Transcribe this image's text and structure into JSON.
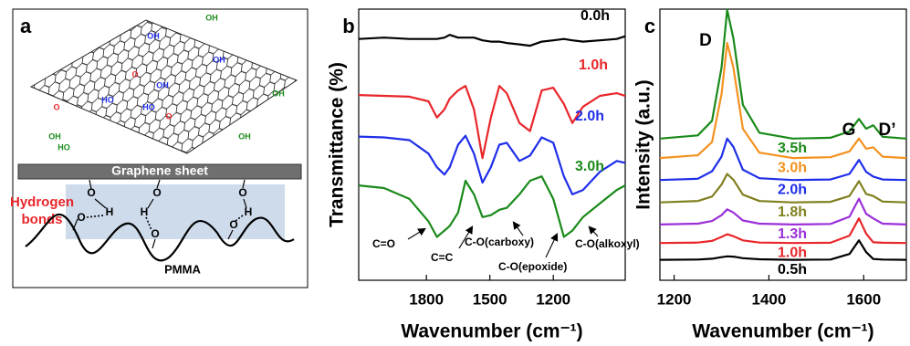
{
  "diagram": {
    "label": "a",
    "sheet_label": "Graphene sheet",
    "hbond_label": [
      "Hydrogen",
      "bonds"
    ],
    "polymer_label": "PMMA",
    "groups": [
      "OH",
      "OH",
      "OH",
      "OH",
      "OH",
      "HO",
      "HO",
      "OH",
      "OH",
      "HO",
      "O",
      "O",
      "O"
    ],
    "bond_atoms": [
      "O",
      "H",
      "O",
      "O",
      "H",
      "O",
      "O",
      "H",
      "O"
    ]
  },
  "chart_data": [
    {
      "type": "line",
      "panel_label": "b",
      "xlabel": "Wavenumber (cm⁻¹)",
      "ylabel": "Transmittance (%)",
      "x": [
        2120,
        2000,
        1880,
        1790,
        1750,
        1715,
        1690,
        1650,
        1615,
        1575,
        1535,
        1495,
        1455,
        1420,
        1360,
        1310,
        1255,
        1200,
        1150,
        1110,
        1060,
        980,
        900,
        860
      ],
      "xlim": [
        2120,
        860
      ],
      "xticks": [
        1800,
        1500,
        1200
      ],
      "ylim": [
        0,
        100
      ],
      "series": [
        {
          "name": "0.0h",
          "color": "#000000",
          "values": [
            89,
            89.5,
            89,
            89,
            89,
            89.5,
            90.5,
            89.5,
            89.5,
            89.5,
            88.5,
            88,
            88,
            87.5,
            87,
            86.5,
            88,
            88.5,
            89,
            88.5,
            88,
            88.5,
            89,
            90
          ]
        },
        {
          "name": "1.0h",
          "color": "#e8262a",
          "values": [
            68.3,
            68,
            67.7,
            66,
            60,
            63,
            67,
            70,
            71.7,
            63,
            45,
            60,
            71.7,
            69,
            58,
            55,
            70,
            71,
            65,
            58,
            64,
            68,
            69,
            68
          ]
        },
        {
          "name": "2.0h",
          "color": "#1f2ee8",
          "values": [
            53,
            52.7,
            51.7,
            46.7,
            41.7,
            39,
            41.7,
            50,
            53.3,
            46.7,
            36,
            41.7,
            50,
            50.7,
            44,
            46,
            52.7,
            50.7,
            38.3,
            31.7,
            33.3,
            40,
            44,
            43.3
          ]
        },
        {
          "name": "3.0h",
          "color": "#1a8a1a",
          "values": [
            35,
            34,
            30,
            21.7,
            16,
            18.3,
            20,
            25,
            36.7,
            31.7,
            23.3,
            24,
            26,
            26.7,
            31.7,
            36.7,
            38.3,
            30,
            16,
            18.3,
            23.3,
            28.3,
            33.3,
            35
          ]
        }
      ],
      "annotations": [
        "C=O",
        "C=C",
        "C-O(carboxy)",
        "C-O(epoxide)",
        "C-O(alkoxyl)"
      ]
    },
    {
      "type": "line",
      "panel_label": "c",
      "xlabel": "Wavenumber (cm⁻¹)",
      "ylabel": "Intensity (a.u.)",
      "x": [
        1170,
        1250,
        1280,
        1300,
        1312,
        1325,
        1345,
        1380,
        1450,
        1530,
        1570,
        1590,
        1605,
        1620,
        1640,
        1690
      ],
      "xlim": [
        1170,
        1690
      ],
      "xticks": [
        1200,
        1400,
        1600
      ],
      "ylim": [
        0,
        102
      ],
      "series": [
        {
          "name": "0.5h",
          "color": "#000000",
          "values": [
            7.7,
            7.8,
            8.1,
            8.7,
            9,
            8.9,
            8.3,
            7.9,
            7.7,
            7.8,
            9.9,
            15,
            10.6,
            8,
            7.8,
            7.7
          ]
        },
        {
          "name": "1.0h",
          "color": "#e8262a",
          "values": [
            14,
            14.2,
            14.8,
            16.3,
            17.3,
            16.6,
            15,
            14.2,
            14,
            14.1,
            16.8,
            23.3,
            17.6,
            14.3,
            14.1,
            14
          ]
        },
        {
          "name": "1.3h",
          "color": "#9b30d9",
          "values": [
            21,
            21.3,
            22.3,
            24.5,
            26.7,
            25.5,
            22.5,
            21.3,
            21,
            21.2,
            23.9,
            30.7,
            25,
            23.3,
            21.3,
            21
          ]
        },
        {
          "name": "1.8h",
          "color": "#808020",
          "values": [
            29.3,
            29.8,
            31.5,
            36,
            40,
            37.8,
            32.2,
            29.8,
            29.3,
            29.5,
            31.7,
            37.3,
            32.5,
            31.7,
            29.6,
            29.3
          ]
        },
        {
          "name": "2.0h",
          "color": "#1f2ee8",
          "values": [
            37.7,
            38.2,
            41,
            46.5,
            53.3,
            50.2,
            41.6,
            38.4,
            37.7,
            37.9,
            40,
            45.3,
            40.8,
            39,
            37.9,
            37.7
          ]
        },
        {
          "name": "3.0h",
          "color": "#f39220",
          "values": [
            46,
            47,
            52,
            70,
            89.3,
            80,
            57,
            48,
            46,
            46.3,
            48.5,
            53.3,
            49.5,
            50,
            46.5,
            46
          ]
        },
        {
          "name": "3.5h",
          "color": "#1a8a1a",
          "values": [
            53.3,
            54.5,
            60,
            80,
            101.7,
            91,
            66,
            55.5,
            53.3,
            53.6,
            56,
            60.7,
            57,
            58.3,
            54,
            53.3
          ]
        }
      ],
      "peak_labels": [
        "D",
        "G",
        "D’"
      ]
    }
  ]
}
